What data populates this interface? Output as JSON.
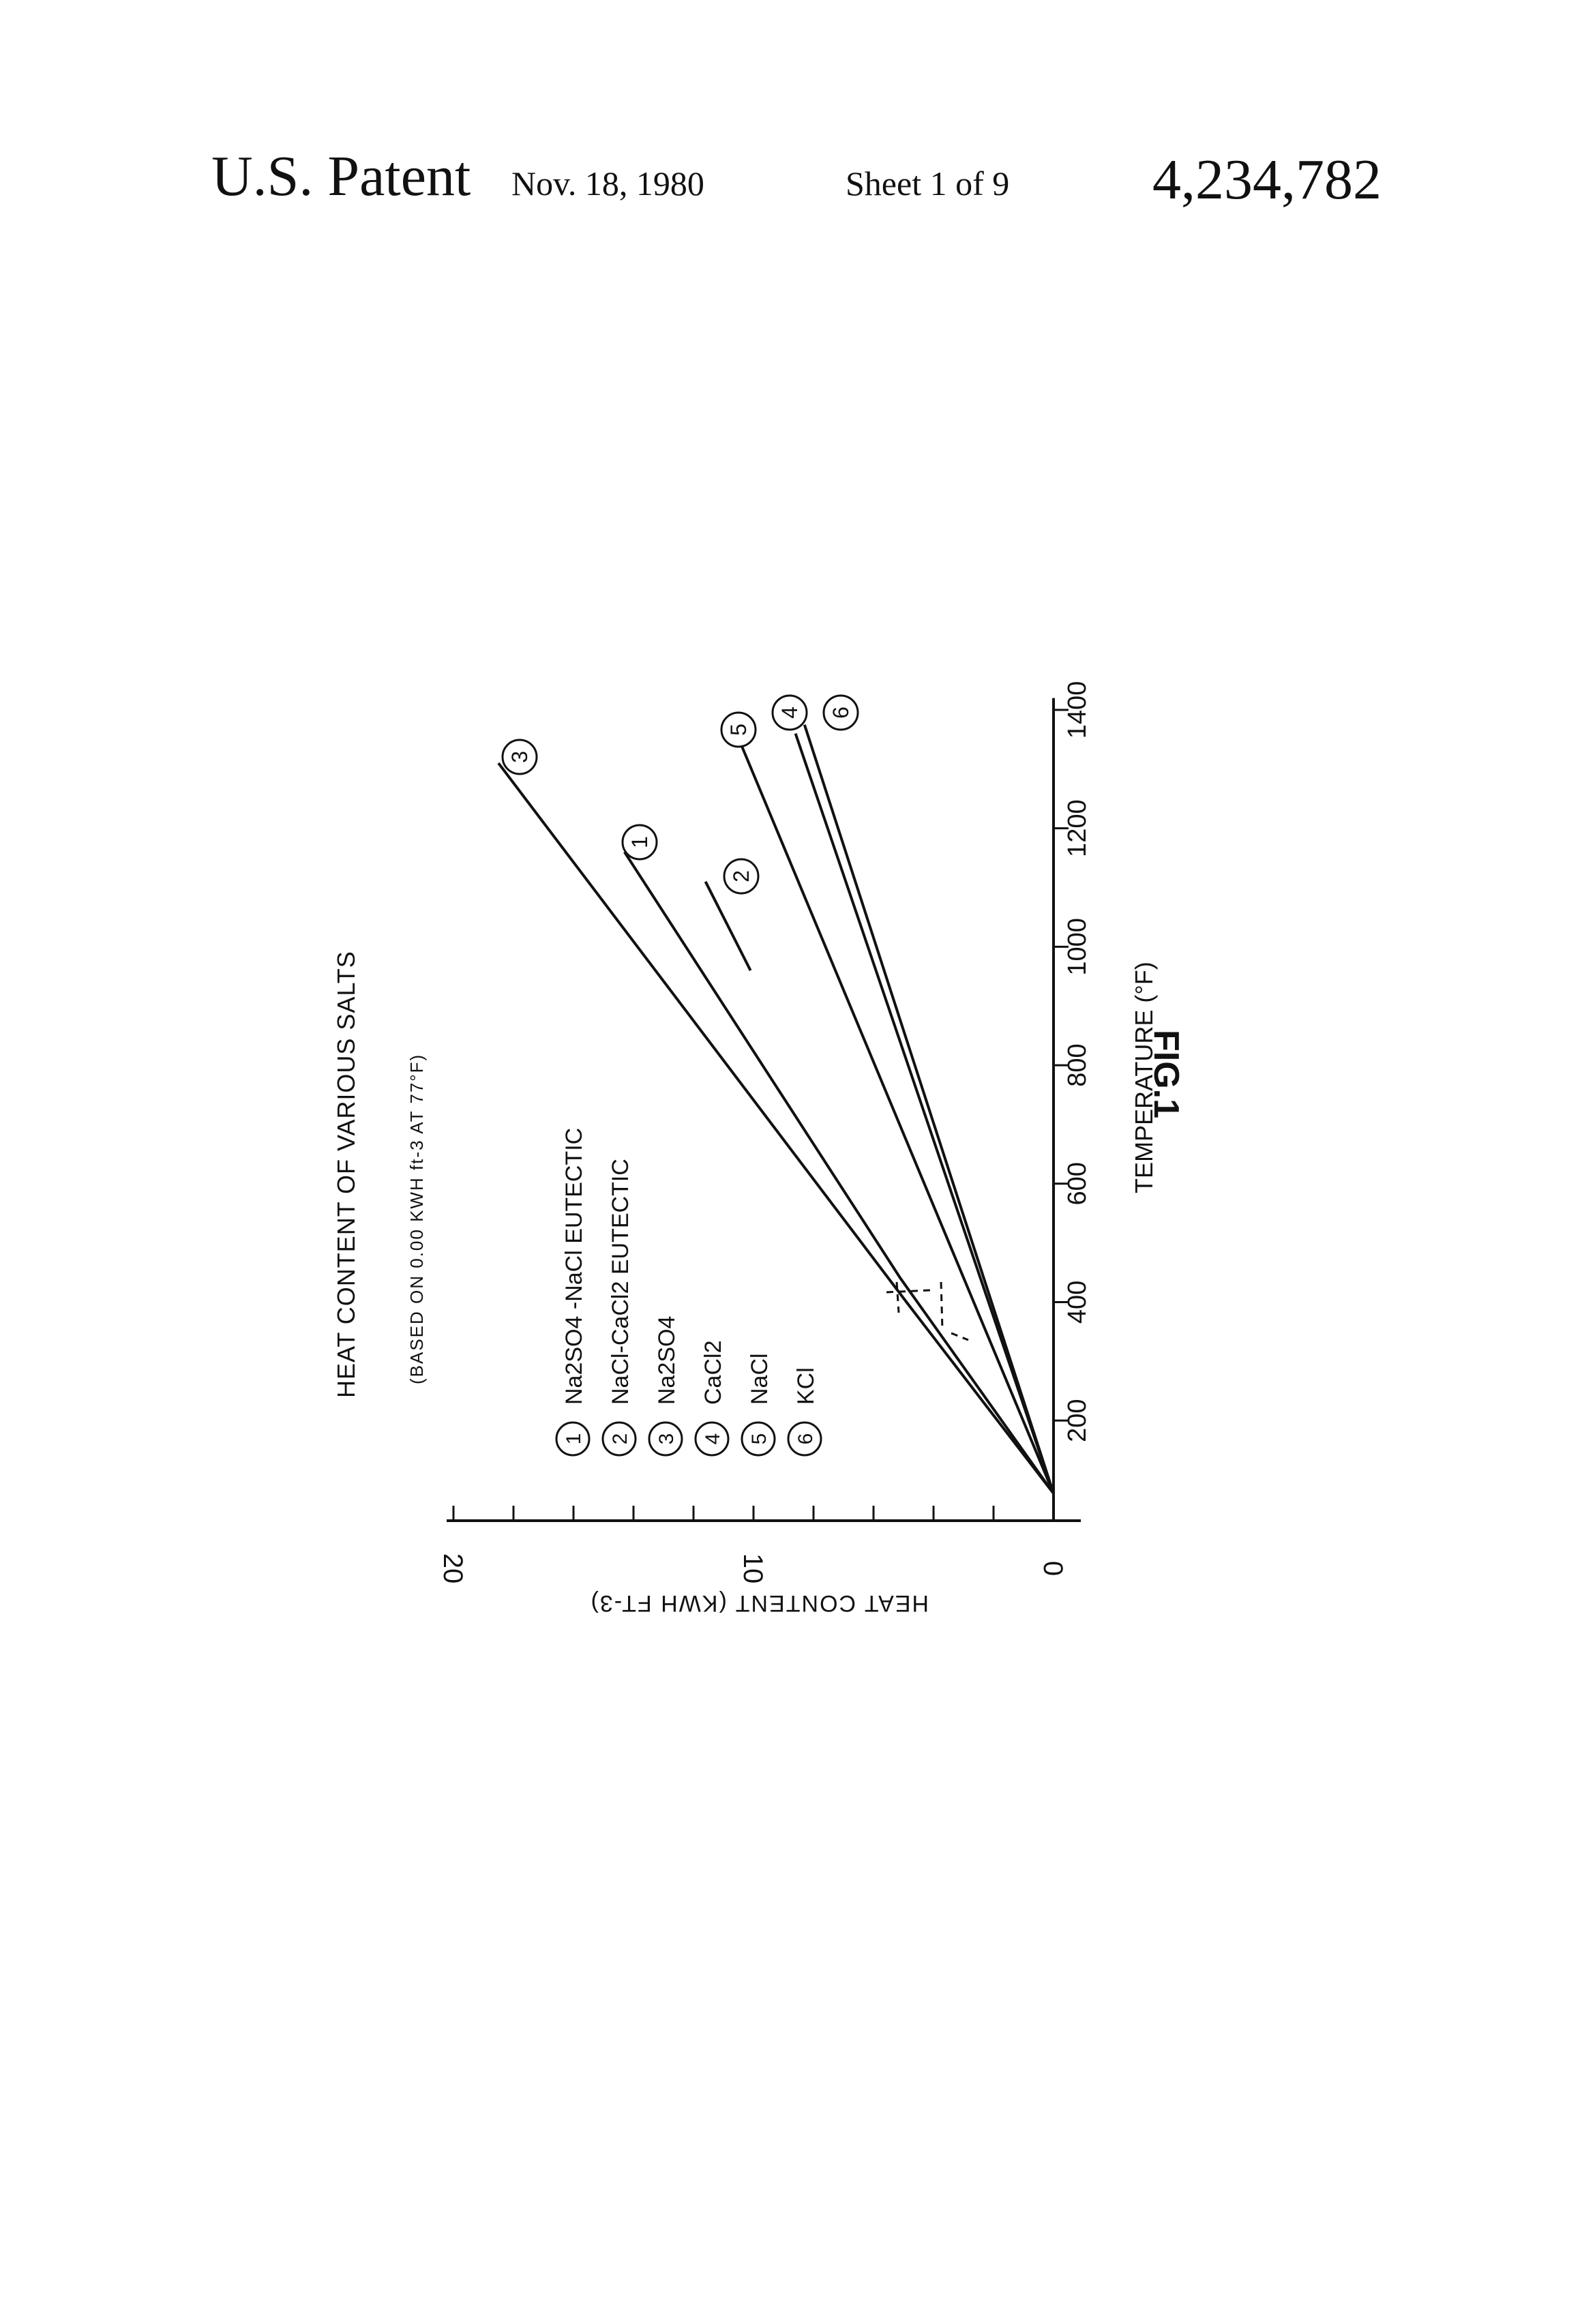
{
  "header": {
    "patent_label": "U.S. Patent",
    "date": "Nov. 18, 1980",
    "sheet": "Sheet 1 of 9",
    "patent_number": "4,234,782"
  },
  "figure_label": "FIG.1",
  "chart_data": {
    "type": "line",
    "orientation": "rotated 90 degrees clockwise on the page",
    "title": "HEAT CONTENT OF VARIOUS SALTS",
    "subtitle": "(BASED ON 0.00 KWH ft-3 AT 77°F)",
    "xlabel": "TEMPERATURE (°F)",
    "ylabel": "HEAT CONTENT (KWH FT-3)",
    "xlim": [
      77,
      1420
    ],
    "ylim": [
      0,
      20
    ],
    "xticks": [
      200,
      400,
      600,
      800,
      1000,
      1200,
      1400
    ],
    "yticks": [
      0,
      10,
      20
    ],
    "grid": false,
    "legend_position": "upper-left",
    "series": [
      {
        "id": "1",
        "name": "Na2SO4-NaCl EUTECTIC",
        "x": [
          77,
          440,
          1160
        ],
        "y": [
          0,
          5.1,
          14.3
        ]
      },
      {
        "id": "2",
        "name": "NaCl-CaCl2 EUTECTIC",
        "x": [
          960,
          1110
        ],
        "y": [
          10.1,
          11.6
        ]
      },
      {
        "id": "3",
        "name": "Na2SO4",
        "x": [
          77,
          400,
          1310
        ],
        "y": [
          0,
          4.9,
          18.5
        ]
      },
      {
        "id": "4",
        "name": "CaCl2",
        "x": [
          77,
          1360
        ],
        "y": [
          0,
          8.6
        ]
      },
      {
        "id": "5",
        "name": "NaCl",
        "x": [
          77,
          1340
        ],
        "y": [
          0,
          10.4
        ]
      },
      {
        "id": "6",
        "name": "KCl",
        "x": [
          77,
          1375
        ],
        "y": [
          0,
          8.3
        ]
      }
    ],
    "legend": [
      {
        "id": "1",
        "label": "Na2SO4 -NaCl EUTECTIC"
      },
      {
        "id": "2",
        "label": "NaCl-CaCl2 EUTECTIC"
      },
      {
        "id": "3",
        "label": "Na2SO4"
      },
      {
        "id": "4",
        "label": "CaCl2"
      },
      {
        "id": "5",
        "label": "NaCl"
      },
      {
        "id": "6",
        "label": "KCl"
      }
    ]
  }
}
